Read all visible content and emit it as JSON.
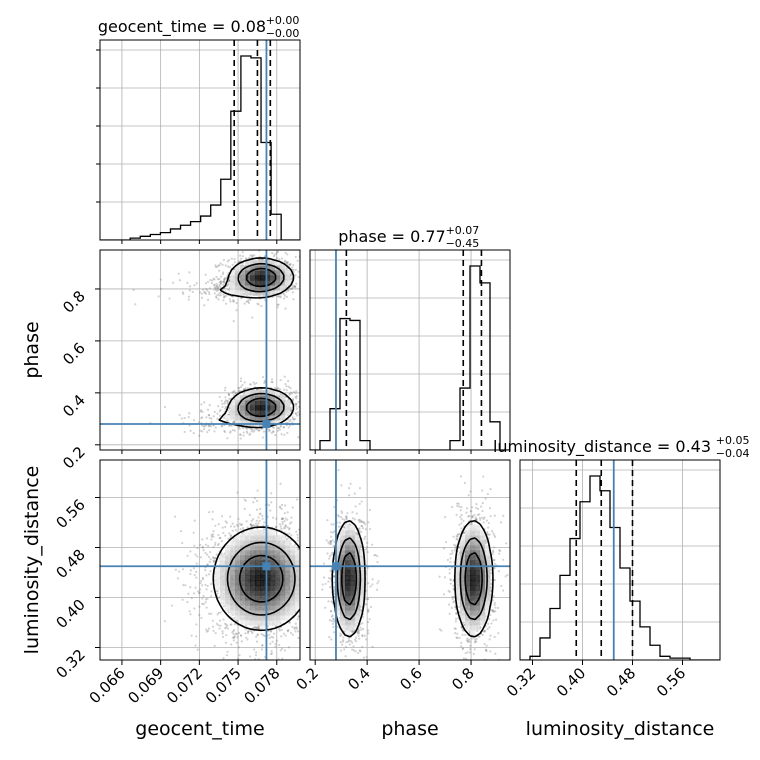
{
  "chart_data": {
    "type": "corner",
    "parameters": [
      {
        "name": "geocent_time",
        "median": 0.08,
        "err_plus": 0.0,
        "err_minus": 0.0,
        "title_main": "geocent_time = 0.08",
        "title_sup": "+0.00",
        "title_sub": "−0.00",
        "range": [
          0.0643,
          0.0798
        ],
        "ticks": [
          0.066,
          0.069,
          0.072,
          0.075,
          0.078
        ],
        "tick_labels": [
          "0.066",
          "0.069",
          "0.072",
          "0.075",
          "0.078"
        ],
        "truth": 0.0772,
        "quantiles": [
          0.0747,
          0.0765,
          0.0775
        ],
        "hist_edges_start": 0.0643,
        "hist_bin_width": 0.00078,
        "hist_counts": [
          0,
          0,
          0,
          1,
          2,
          3,
          4,
          6,
          8,
          10,
          13,
          19,
          33,
          70,
          100,
          99,
          53,
          14,
          0,
          0
        ]
      },
      {
        "name": "phase",
        "median": 0.77,
        "err_plus": 0.07,
        "err_minus": 0.45,
        "title_main": "phase = 0.77",
        "title_sup": "+0.07",
        "title_sub": "−0.45",
        "range": [
          0.18,
          0.95
        ],
        "ticks": [
          0.2,
          0.4,
          0.6,
          0.8
        ],
        "tick_labels": [
          "0.2",
          "0.4",
          "0.6",
          "0.8"
        ],
        "truth": 0.28,
        "quantiles": [
          0.32,
          0.77,
          0.84
        ],
        "hist_edges_start": 0.18,
        "hist_bin_width": 0.0385,
        "hist_counts": [
          0,
          5,
          22,
          70,
          69,
          5,
          0,
          0,
          0,
          0,
          0,
          0,
          0,
          0,
          5,
          33,
          98,
          89,
          15,
          0
        ]
      },
      {
        "name": "luminosity_distance",
        "median": 0.43,
        "err_plus": 0.05,
        "err_minus": 0.04,
        "title_main": "luminosity_distance = 0.43",
        "title_sup": "+0.05",
        "title_sub": "−0.04",
        "range": [
          0.3,
          0.62
        ],
        "ticks": [
          0.32,
          0.4,
          0.48,
          0.56
        ],
        "tick_labels": [
          "0.32",
          "0.40",
          "0.48",
          "0.56"
        ],
        "truth": 0.45,
        "quantiles": [
          0.39,
          0.43,
          0.48
        ],
        "hist_edges_start": 0.3,
        "hist_bin_width": 0.016,
        "hist_counts": [
          0,
          2,
          12,
          28,
          46,
          66,
          86,
          100,
          92,
          72,
          50,
          32,
          18,
          8,
          2,
          1,
          1,
          0,
          0,
          0
        ]
      }
    ],
    "truth_color": "#4682b4",
    "hist_color": "#000000",
    "grid": true,
    "scatter_color": "#7f7f7f",
    "contour_colors": [
      "#000000"
    ],
    "density_blobs_2d": {
      "time_phase": [
        {
          "x": 0.0768,
          "y": 0.845,
          "sx": 0.0012,
          "sy": 0.035,
          "w": 0.45
        },
        {
          "x": 0.0768,
          "y": 0.345,
          "sx": 0.0012,
          "sy": 0.035,
          "w": 0.45
        },
        {
          "x": 0.074,
          "y": 0.79,
          "sx": 0.002,
          "sy": 0.025,
          "w": 0.05
        },
        {
          "x": 0.074,
          "y": 0.295,
          "sx": 0.002,
          "sy": 0.025,
          "w": 0.05
        }
      ],
      "time_distance": [
        {
          "x": 0.0768,
          "y": 0.43,
          "sx": 0.0018,
          "sy": 0.04,
          "w": 1.0
        }
      ],
      "phase_distance": [
        {
          "x": 0.33,
          "y": 0.43,
          "sx": 0.03,
          "sy": 0.045,
          "w": 0.5
        },
        {
          "x": 0.81,
          "y": 0.43,
          "sx": 0.035,
          "sy": 0.045,
          "w": 0.5
        }
      ]
    }
  }
}
